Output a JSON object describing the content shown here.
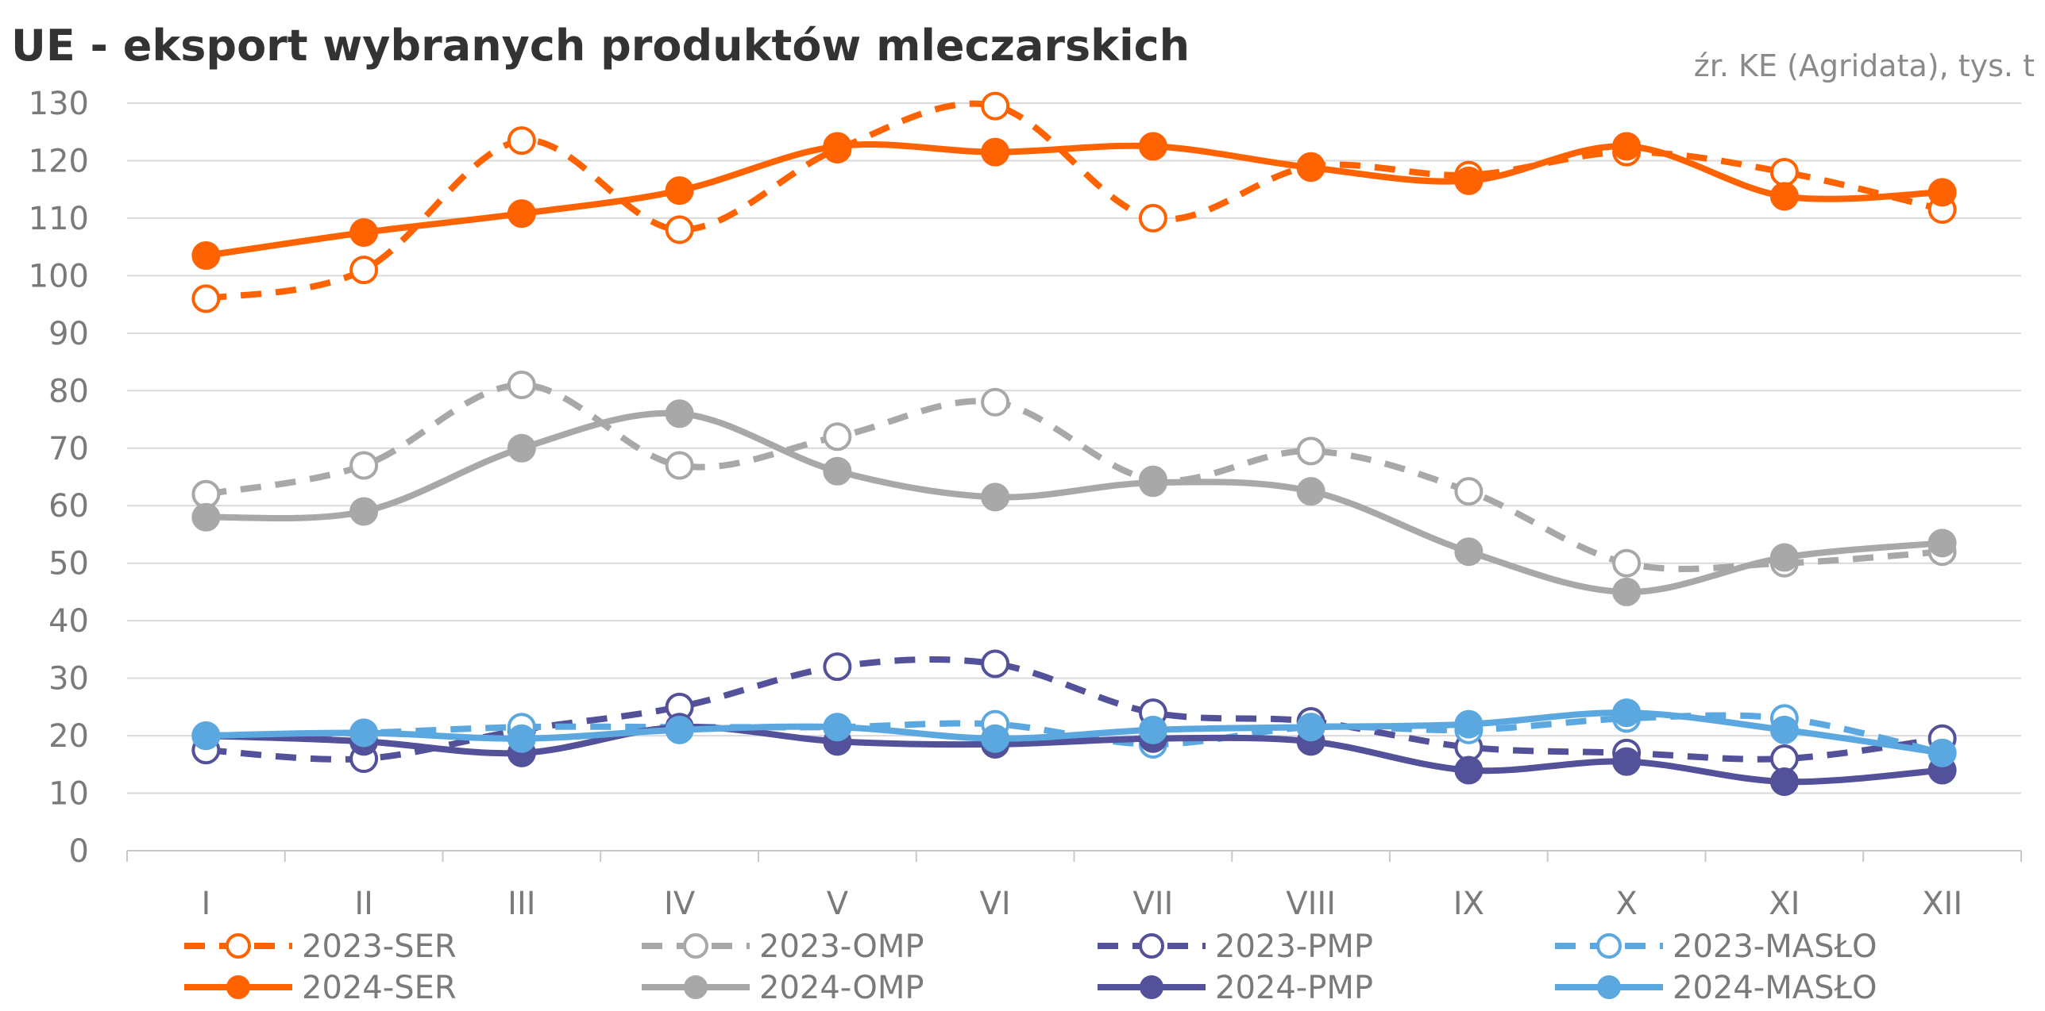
{
  "chart_data": {
    "type": "line",
    "title": "UE - eksport wybranych produktów mleczarskich",
    "source": "źr. KE (Agridata), tys. t",
    "xlabel": "",
    "ylabel": "",
    "categories": [
      "I",
      "II",
      "III",
      "IV",
      "V",
      "VI",
      "VII",
      "VIII",
      "IX",
      "X",
      "XI",
      "XII"
    ],
    "ylim": [
      0,
      130
    ],
    "yticks": [
      0,
      10,
      20,
      30,
      40,
      50,
      60,
      70,
      80,
      90,
      100,
      110,
      120,
      130
    ],
    "grid": "horizontal",
    "legend_position": "bottom",
    "series": [
      {
        "name": "2023-SER",
        "color": "#ff6200",
        "style": "dashed",
        "marker": "open",
        "values": [
          96,
          101,
          123.5,
          108,
          122,
          129.5,
          110,
          119,
          117.5,
          121.5,
          118,
          111.5
        ]
      },
      {
        "name": "2023-OMP",
        "color": "#a8a8a8",
        "style": "dashed",
        "marker": "open",
        "values": [
          62,
          67,
          81,
          67,
          72,
          78,
          64.5,
          69.5,
          62.5,
          50,
          50,
          52
        ]
      },
      {
        "name": "2023-PMP",
        "color": "#525199",
        "style": "dashed",
        "marker": "open",
        "values": [
          17.5,
          16,
          21,
          25,
          32,
          32.5,
          24,
          22.5,
          18,
          17,
          16,
          19.5
        ]
      },
      {
        "name": "2023-MASŁO",
        "color": "#5ba8e0",
        "style": "dashed",
        "marker": "open",
        "values": [
          20,
          20.5,
          21.5,
          21.5,
          21.5,
          22,
          18.5,
          21.5,
          21,
          23,
          23,
          17
        ]
      },
      {
        "name": "2024-SER",
        "color": "#ff6200",
        "style": "solid",
        "marker": "filled",
        "values": [
          103.5,
          107.5,
          110.8,
          114.8,
          122.5,
          121.5,
          122.5,
          118.8,
          116.5,
          122.5,
          113.8,
          114.5
        ]
      },
      {
        "name": "2024-OMP",
        "color": "#a8a8a8",
        "style": "solid",
        "marker": "filled",
        "values": [
          58,
          59,
          70,
          76,
          66,
          61.5,
          64,
          62.5,
          52,
          45,
          51,
          53.5
        ]
      },
      {
        "name": "2024-PMP",
        "color": "#525199",
        "style": "solid",
        "marker": "filled",
        "values": [
          20,
          19,
          17,
          21.5,
          19,
          18.5,
          19.5,
          19,
          14,
          15.5,
          12,
          14
        ]
      },
      {
        "name": "2024-MASŁO",
        "color": "#5ba8e0",
        "style": "solid",
        "marker": "filled",
        "values": [
          20,
          20.5,
          19.5,
          21,
          21.5,
          19.5,
          21,
          21.5,
          22,
          24,
          21,
          17
        ]
      }
    ]
  }
}
